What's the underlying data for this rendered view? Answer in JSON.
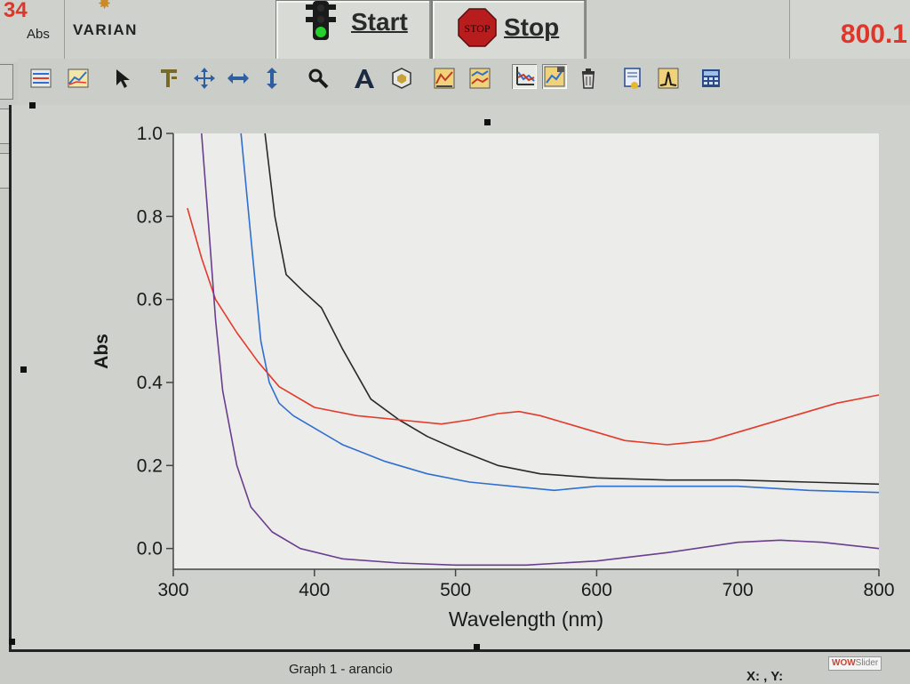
{
  "top": {
    "readout_left": {
      "value": "34",
      "unit": "Abs"
    },
    "brand": "VARIAN",
    "start_label": "Start",
    "stop_label": "Stop",
    "stop_sign_text": "STOP",
    "readout_right": "800.1"
  },
  "toolbar": {
    "icons": [
      "format-table-icon",
      "graph-preferences-icon",
      "pointer-icon",
      "cursor-tool-icon",
      "pan-icon",
      "horizontal-scale-icon",
      "vertical-scale-icon",
      "zoom-icon",
      "text-icon",
      "shape-icon",
      "overlay-graph-icon",
      "split-graph-icon",
      "autoscale-icon",
      "scale-preferences-icon",
      "delete-trace-icon",
      "report-icon",
      "peak-label-icon",
      "calculator-icon"
    ]
  },
  "status": {
    "graph_title": "Graph 1 - arancio",
    "xy_readout": "X: , Y:",
    "watermark_a": "WOW",
    "watermark_b": "Slider"
  },
  "colors": {
    "black_trace": "#2a2a2a",
    "blue_trace": "#2f6fd0",
    "red_trace": "#e23b2c",
    "purple_trace": "#6a3d8f",
    "readout_red": "#e0362a"
  },
  "chart_data": {
    "type": "line",
    "title": "",
    "xlabel": "Wavelength (nm)",
    "ylabel": "Abs",
    "xlim": [
      300,
      800
    ],
    "ylim": [
      -0.05,
      1.0
    ],
    "xticks": [
      "300",
      "400",
      "500",
      "600",
      "700",
      "800"
    ],
    "yticks": [
      "0.0",
      "0.2",
      "0.4",
      "0.6",
      "0.8",
      "1.0"
    ],
    "grid": false,
    "series": [
      {
        "color": "#2a2a2a",
        "x": [
          365,
          372,
          380,
          392,
          405,
          420,
          440,
          460,
          480,
          500,
          530,
          560,
          600,
          650,
          700,
          750,
          800
        ],
        "y": [
          1.0,
          0.8,
          0.66,
          0.62,
          0.58,
          0.48,
          0.36,
          0.31,
          0.27,
          0.24,
          0.2,
          0.18,
          0.17,
          0.165,
          0.165,
          0.16,
          0.155
        ]
      },
      {
        "color": "#2f6fd0",
        "x": [
          348,
          355,
          362,
          368,
          375,
          385,
          400,
          420,
          450,
          480,
          510,
          540,
          570,
          600,
          650,
          700,
          750,
          800
        ],
        "y": [
          1.0,
          0.75,
          0.5,
          0.4,
          0.35,
          0.32,
          0.29,
          0.25,
          0.21,
          0.18,
          0.16,
          0.15,
          0.14,
          0.15,
          0.15,
          0.15,
          0.14,
          0.135
        ]
      },
      {
        "color": "#e23b2c",
        "x": [
          310,
          320,
          330,
          345,
          360,
          375,
          400,
          430,
          460,
          490,
          510,
          530,
          545,
          560,
          590,
          620,
          650,
          680,
          710,
          740,
          770,
          800
        ],
        "y": [
          0.82,
          0.7,
          0.6,
          0.52,
          0.45,
          0.39,
          0.34,
          0.32,
          0.31,
          0.3,
          0.31,
          0.325,
          0.33,
          0.32,
          0.29,
          0.26,
          0.25,
          0.26,
          0.29,
          0.32,
          0.35,
          0.37
        ]
      },
      {
        "color": "#6a3d8f",
        "x": [
          320,
          325,
          330,
          335,
          345,
          355,
          370,
          390,
          420,
          460,
          500,
          550,
          600,
          650,
          700,
          730,
          760,
          800
        ],
        "y": [
          1.0,
          0.78,
          0.55,
          0.38,
          0.2,
          0.1,
          0.04,
          0.0,
          -0.025,
          -0.035,
          -0.04,
          -0.04,
          -0.03,
          -0.01,
          0.015,
          0.02,
          0.015,
          0.0
        ]
      }
    ]
  }
}
